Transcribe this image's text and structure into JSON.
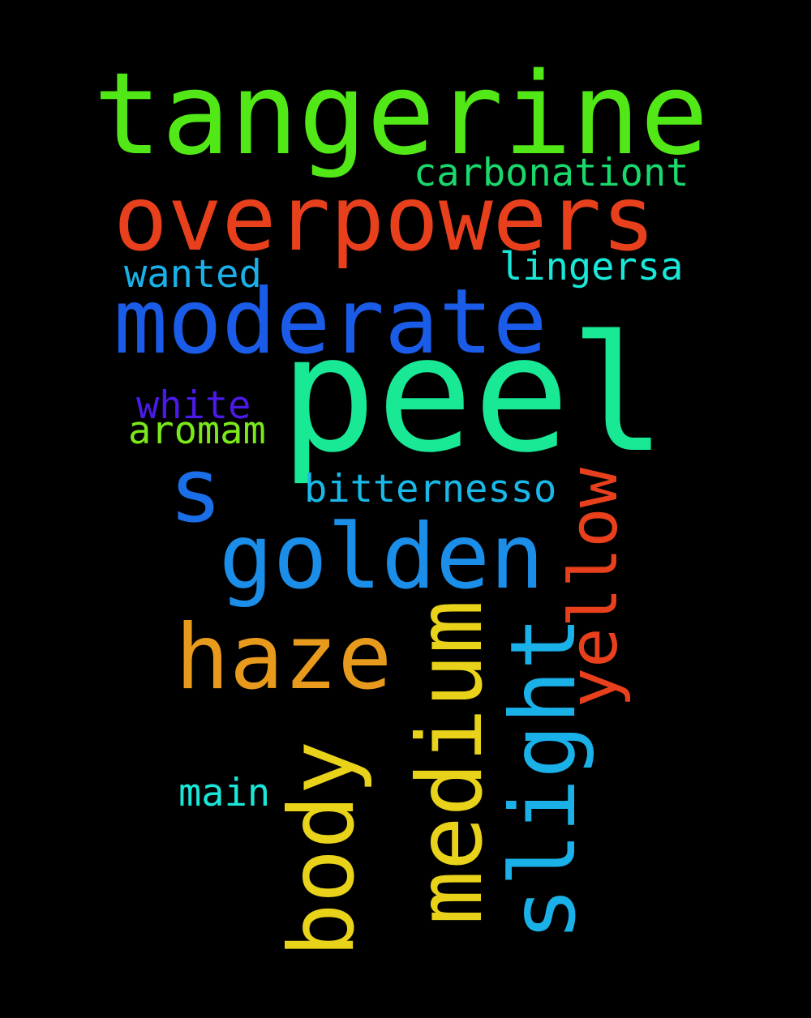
{
  "background": "#000000",
  "words": {
    "tangerine": {
      "text": "tangerine",
      "color": "#52e817"
    },
    "overpowers": {
      "text": "overpowers",
      "color": "#e8401c"
    },
    "moderate": {
      "text": "moderate",
      "color": "#1a5ce8"
    },
    "peel": {
      "text": "peel",
      "color": "#19e895"
    },
    "golden": {
      "text": "golden",
      "color": "#1a8ee8"
    },
    "haze": {
      "text": "haze",
      "color": "#e89a1c"
    },
    "body": {
      "text": "body",
      "color": "#e8d21a"
    },
    "medium": {
      "text": "medium",
      "color": "#e8d21a"
    },
    "slight": {
      "text": "slight",
      "color": "#1ab0e8"
    },
    "yellow": {
      "text": "yellow",
      "color": "#e8401c"
    },
    "s": {
      "text": "s",
      "color": "#1a6ee8"
    },
    "carbonationt": {
      "text": "carbonationt",
      "color": "#19d86c"
    },
    "lingersa": {
      "text": "lingersa",
      "color": "#19e8d8"
    },
    "wanted": {
      "text": "wanted",
      "color": "#1ab0e8"
    },
    "white": {
      "text": "white",
      "color": "#4a1ae8"
    },
    "aromam": {
      "text": "aromam",
      "color": "#7ae81a"
    },
    "bitternesso": {
      "text": "bitternesso",
      "color": "#1ab8e8"
    },
    "main": {
      "text": "main",
      "color": "#19e8d8"
    }
  }
}
